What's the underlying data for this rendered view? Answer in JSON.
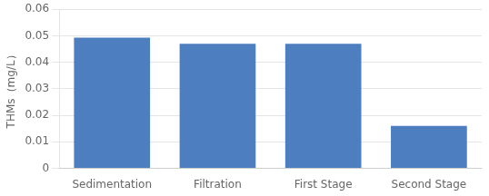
{
  "chart_data": {
    "type": "bar",
    "ylabel": "THMs（mg/L）",
    "categories": [
      "Sedimentation",
      "Filtration",
      "First Stage",
      "Second Stage"
    ],
    "values": [
      0.0493,
      0.047,
      0.047,
      0.016
    ],
    "color": "#4D7EBF",
    "ylim": [
      0,
      0.06
    ],
    "yticks": [
      0,
      0.01,
      0.02,
      0.03,
      0.04,
      0.05,
      0.06
    ],
    "grid": true
  }
}
